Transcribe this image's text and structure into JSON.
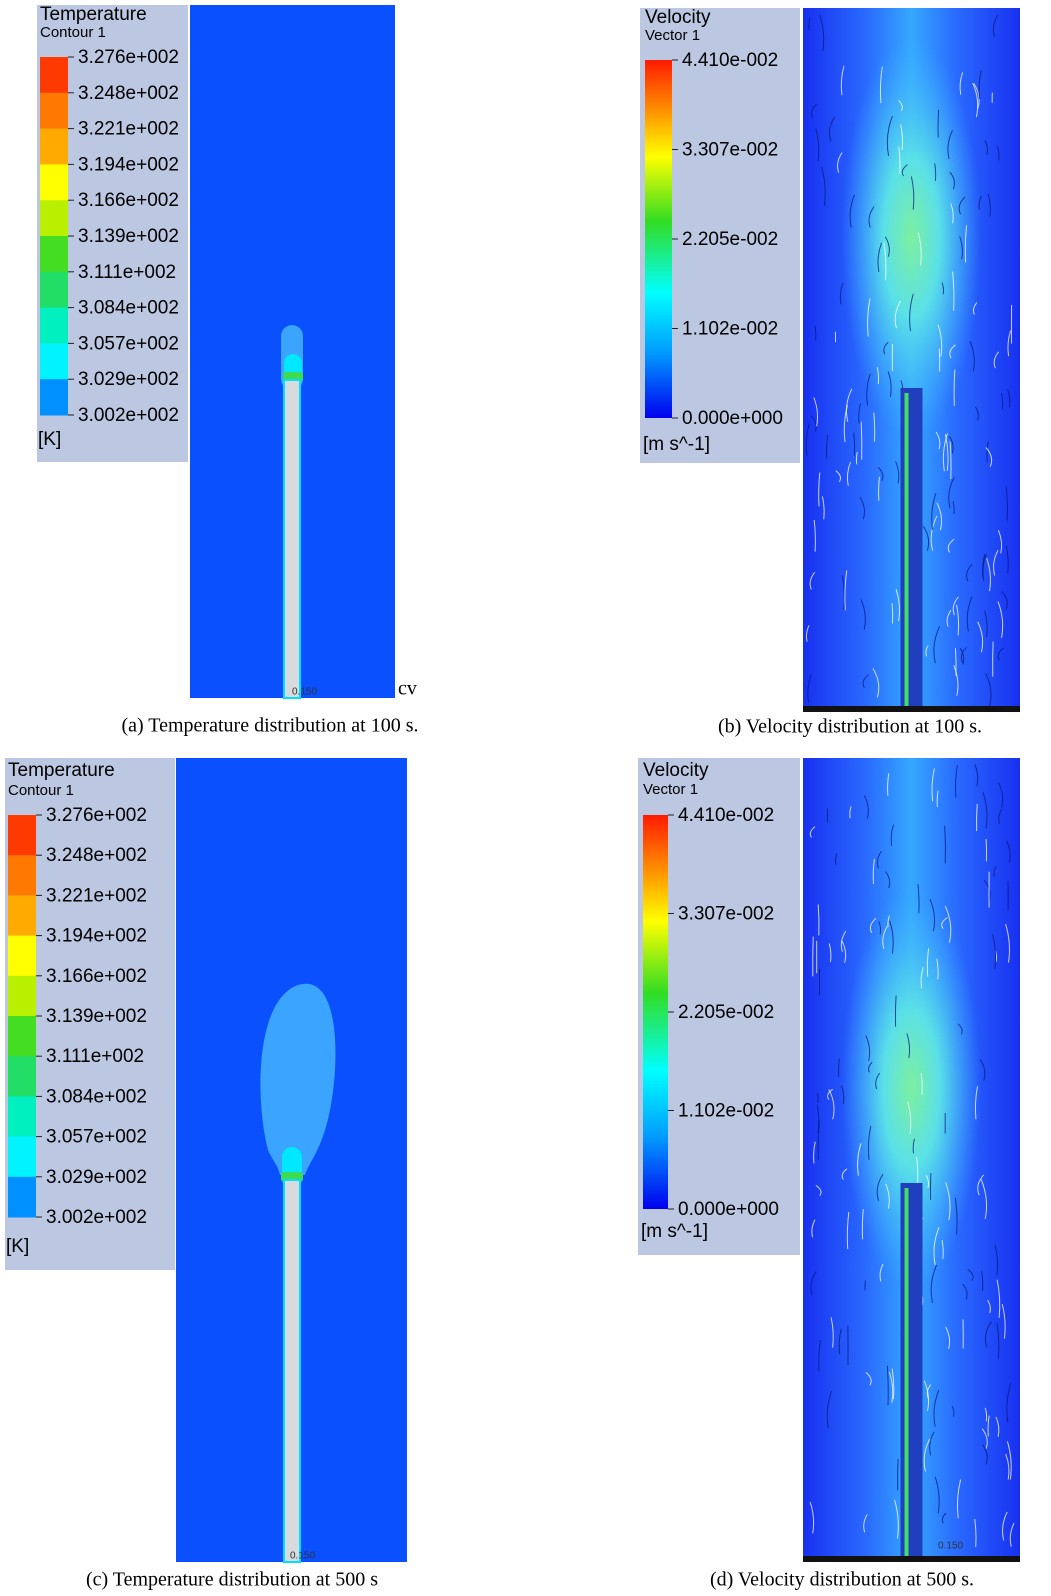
{
  "panels": [
    {
      "legend": {
        "title": "Temperature",
        "subtitle": "Contour 1",
        "labels": [
          "3.276e+002",
          "3.248e+002",
          "3.221e+002",
          "3.194e+002",
          "3.166e+002",
          "3.139e+002",
          "3.111e+002",
          "3.084e+002",
          "3.057e+002",
          "3.029e+002",
          "3.002e+002"
        ],
        "unit": "[K]"
      },
      "scale_label": "0.150",
      "caption": "(a)  Temperature distribution at 100 s."
    },
    {
      "legend": {
        "title": "Velocity",
        "subtitle": "Vector 1",
        "labels": [
          "4.410e-002",
          "3.307e-002",
          "2.205e-002",
          "1.102e-002",
          "0.000e+000"
        ],
        "unit": "[m s^-1]"
      },
      "caption": "(b)  Velocity distribution at 100 s."
    },
    {
      "legend": {
        "title": "Temperature",
        "subtitle": "Contour 1",
        "labels": [
          "3.276e+002",
          "3.248e+002",
          "3.221e+002",
          "3.194e+002",
          "3.166e+002",
          "3.139e+002",
          "3.111e+002",
          "3.084e+002",
          "3.057e+002",
          "3.029e+002",
          "3.002e+002"
        ],
        "unit": "[K]"
      },
      "scale_label": "0.150",
      "caption": "(c)  Temperature distribution at 500 s"
    },
    {
      "legend": {
        "title": "Velocity",
        "subtitle": "Vector 1",
        "labels": [
          "4.410e-002",
          "3.307e-002",
          "2.205e-002",
          "1.102e-002",
          "0.000e+000"
        ],
        "unit": "[m s^-1]"
      },
      "scale_label": "0.150",
      "caption": "(d)  Velocity distribution at 500 s."
    }
  ],
  "stray_text": "cv"
}
